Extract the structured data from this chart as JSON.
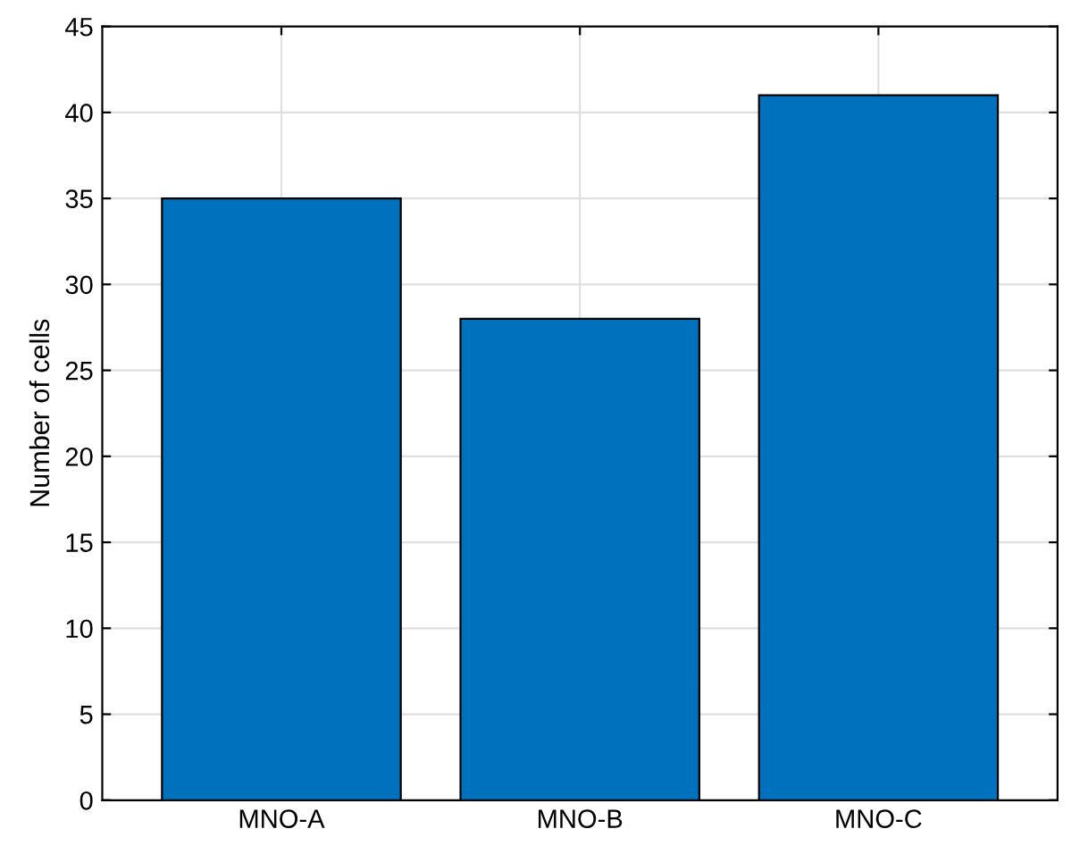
{
  "chart_data": {
    "type": "bar",
    "ylabel": "Number of cells",
    "categories": [
      "MNO-A",
      "MNO-B",
      "MNO-C"
    ],
    "values": [
      35,
      28,
      41
    ],
    "color": "#0072bd",
    "ylim": [
      0,
      45
    ],
    "yticks": [
      0,
      5,
      10,
      15,
      20,
      25,
      30,
      35,
      40,
      45
    ],
    "grid": true
  }
}
